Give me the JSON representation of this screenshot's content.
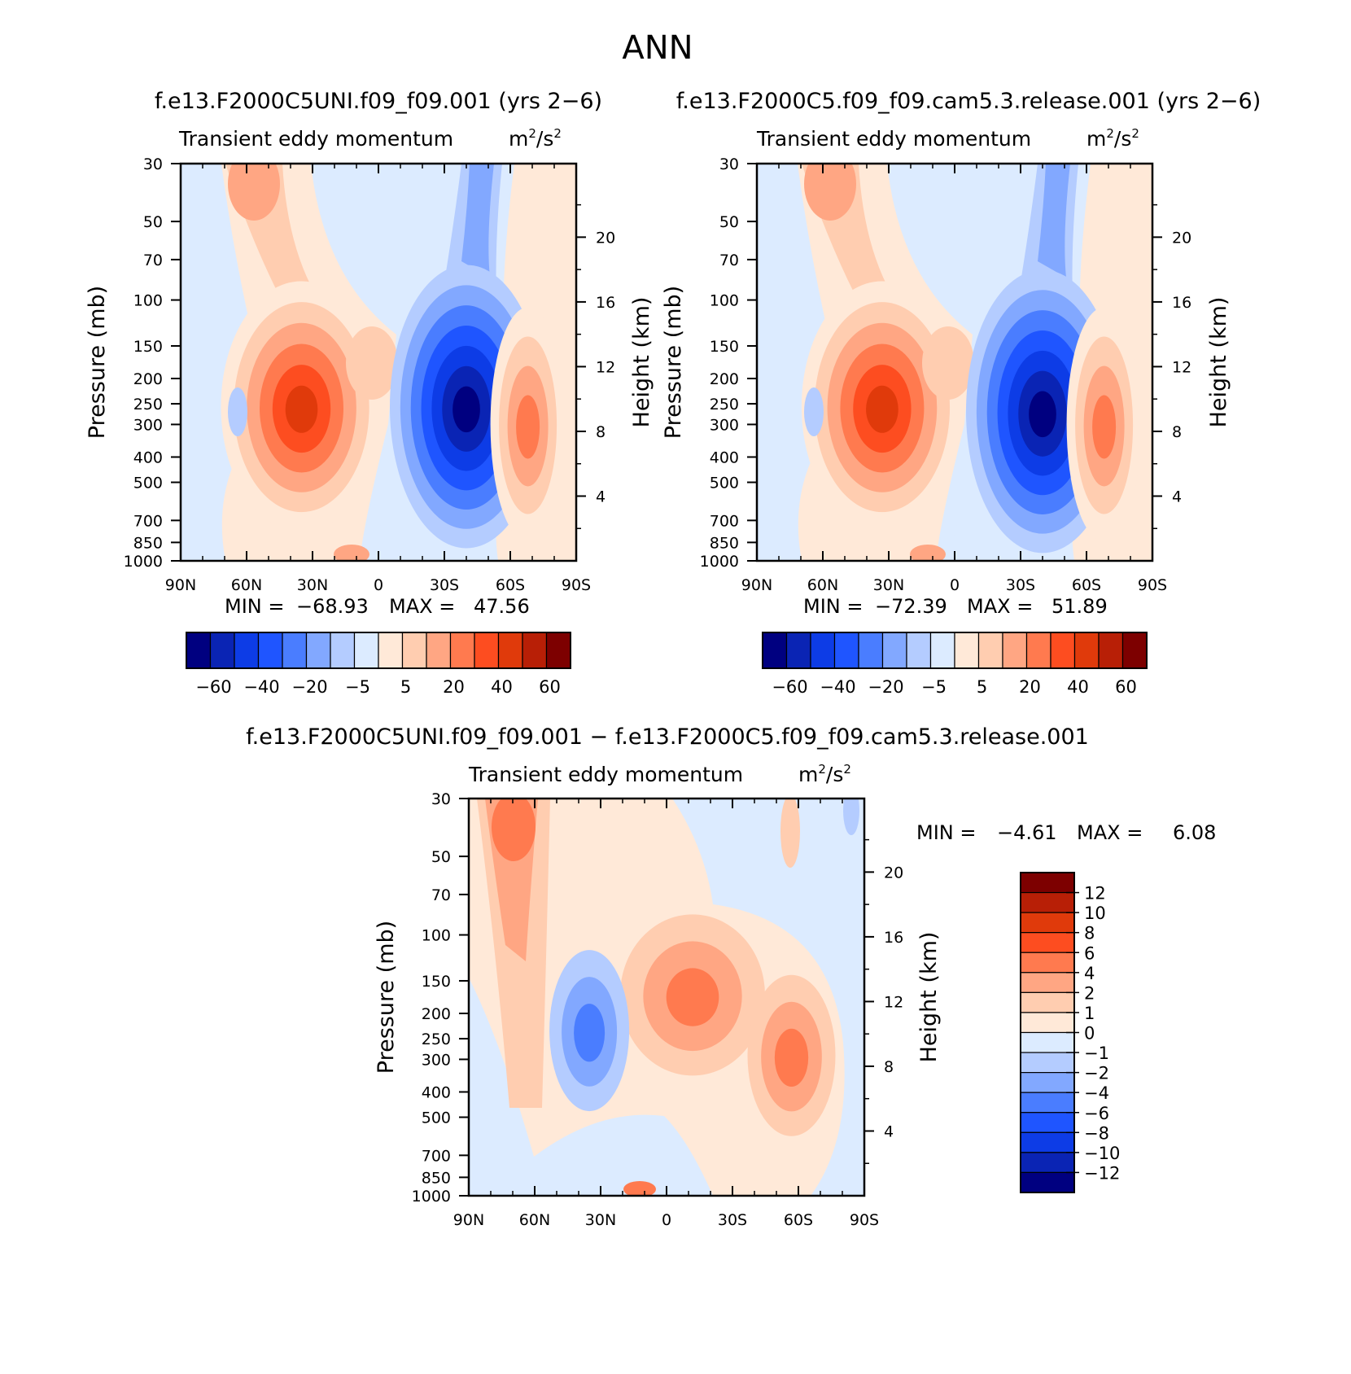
{
  "figure_title": "ANN",
  "colors": {
    "main_scale": [
      "#000080",
      "#0a24b4",
      "#0d3ce6",
      "#1f55ff",
      "#4a7dff",
      "#82a8ff",
      "#b4ccff",
      "#dcebff",
      "#ffe9d8",
      "#ffcdb0",
      "#ffa683",
      "#ff7a4f",
      "#fd4d20",
      "#e03a0b",
      "#b81f06",
      "#7d0000"
    ],
    "diff_scale": [
      "#000080",
      "#0a24b4",
      "#0d3ce6",
      "#1f55ff",
      "#4a7dff",
      "#82a8ff",
      "#b4ccff",
      "#dcebff",
      "#ffe9d8",
      "#ffcdb0",
      "#ffa683",
      "#ff7a4f",
      "#fd4d20",
      "#e03a0b",
      "#b81f06",
      "#7d0000"
    ]
  },
  "chart_data": [
    {
      "type": "heatmap",
      "panel": "top-left",
      "case_title": "f.e13.F2000C5UNI.f09_f09.001 (yrs 2−6)",
      "subtitle": "Transient eddy momentum",
      "units_base": "m",
      "units_mid": "/s",
      "units_exp": "2",
      "ylabel": "Pressure (mb)",
      "y2label": "Height (km)",
      "x_ticks": [
        "90N",
        "60N",
        "30N",
        "0",
        "30S",
        "60S",
        "90S"
      ],
      "y_ticks": [
        "30",
        "50",
        "70",
        "100",
        "150",
        "200",
        "250",
        "300",
        "400",
        "500",
        "700",
        "850",
        "1000"
      ],
      "y2_ticks": [
        "20",
        "16",
        "12",
        "8",
        "4"
      ],
      "xlim": [
        "90N",
        "90S"
      ],
      "ylim": [
        1000,
        30
      ],
      "stats": {
        "min_label": "MIN =",
        "min": "−68.93",
        "max_label": "MAX =",
        "max": "47.56"
      },
      "colorbar_labels": [
        "−60",
        "−40",
        "−20",
        "−5",
        "5",
        "20",
        "40",
        "60"
      ],
      "features": [
        {
          "lat": 35,
          "p": 230,
          "value": 47.56,
          "sign": "positive"
        },
        {
          "lat": -40,
          "p": 230,
          "value": -68.93,
          "sign": "negative"
        },
        {
          "lat": -68,
          "p": 300,
          "value": 18,
          "sign": "positive"
        }
      ]
    },
    {
      "type": "heatmap",
      "panel": "top-right",
      "case_title": "f.e13.F2000C5.f09_f09.cam5.3.release.001 (yrs 2−6)",
      "subtitle": "Transient eddy momentum",
      "units_base": "m",
      "units_mid": "/s",
      "units_exp": "2",
      "ylabel": "Pressure (mb)",
      "y2label": "Height (km)",
      "x_ticks": [
        "90N",
        "60N",
        "30N",
        "0",
        "30S",
        "60S",
        "90S"
      ],
      "y_ticks": [
        "30",
        "50",
        "70",
        "100",
        "150",
        "200",
        "250",
        "300",
        "400",
        "500",
        "700",
        "850",
        "1000"
      ],
      "y2_ticks": [
        "20",
        "16",
        "12",
        "8",
        "4"
      ],
      "xlim": [
        "90N",
        "90S"
      ],
      "ylim": [
        1000,
        30
      ],
      "stats": {
        "min_label": "MIN =",
        "min": "−72.39",
        "max_label": "MAX =",
        "max": "51.89"
      },
      "colorbar_labels": [
        "−60",
        "−40",
        "−20",
        "−5",
        "5",
        "20",
        "40",
        "60"
      ],
      "features": [
        {
          "lat": 33,
          "p": 230,
          "value": 51.89,
          "sign": "positive"
        },
        {
          "lat": -40,
          "p": 240,
          "value": -72.39,
          "sign": "negative"
        },
        {
          "lat": -68,
          "p": 300,
          "value": 20,
          "sign": "positive"
        }
      ]
    },
    {
      "type": "heatmap",
      "panel": "bottom-difference",
      "case_title": "f.e13.F2000C5UNI.f09_f09.001 − f.e13.F2000C5.f09_f09.cam5.3.release.001",
      "subtitle": "Transient eddy momentum",
      "units_base": "m",
      "units_mid": "/s",
      "units_exp": "2",
      "ylabel": "Pressure (mb)",
      "y2label": "Height (km)",
      "x_ticks": [
        "90N",
        "60N",
        "30N",
        "0",
        "30S",
        "60S",
        "90S"
      ],
      "y_ticks": [
        "30",
        "50",
        "70",
        "100",
        "150",
        "200",
        "250",
        "300",
        "400",
        "500",
        "700",
        "850",
        "1000"
      ],
      "y2_ticks": [
        "20",
        "16",
        "12",
        "8",
        "4"
      ],
      "xlim": [
        "90N",
        "90S"
      ],
      "ylim": [
        1000,
        30
      ],
      "stats": {
        "min_label": "MIN =",
        "min": "−4.61",
        "max_label": "MAX =",
        "max": "6.08"
      },
      "colorbar_labels": [
        "12",
        "10",
        "8",
        "6",
        "4",
        "2",
        "1",
        "0",
        "−1",
        "−2",
        "−4",
        "−6",
        "−8",
        "−10",
        "−12"
      ],
      "features": [
        {
          "lat": -10,
          "p": 170,
          "value": 6.08,
          "sign": "positive"
        },
        {
          "lat": -55,
          "p": 290,
          "value": 5,
          "sign": "positive"
        },
        {
          "lat": 37,
          "p": 250,
          "value": -4.61,
          "sign": "negative"
        },
        {
          "lat": 75,
          "p": 45,
          "value": 3,
          "sign": "positive"
        }
      ]
    }
  ]
}
